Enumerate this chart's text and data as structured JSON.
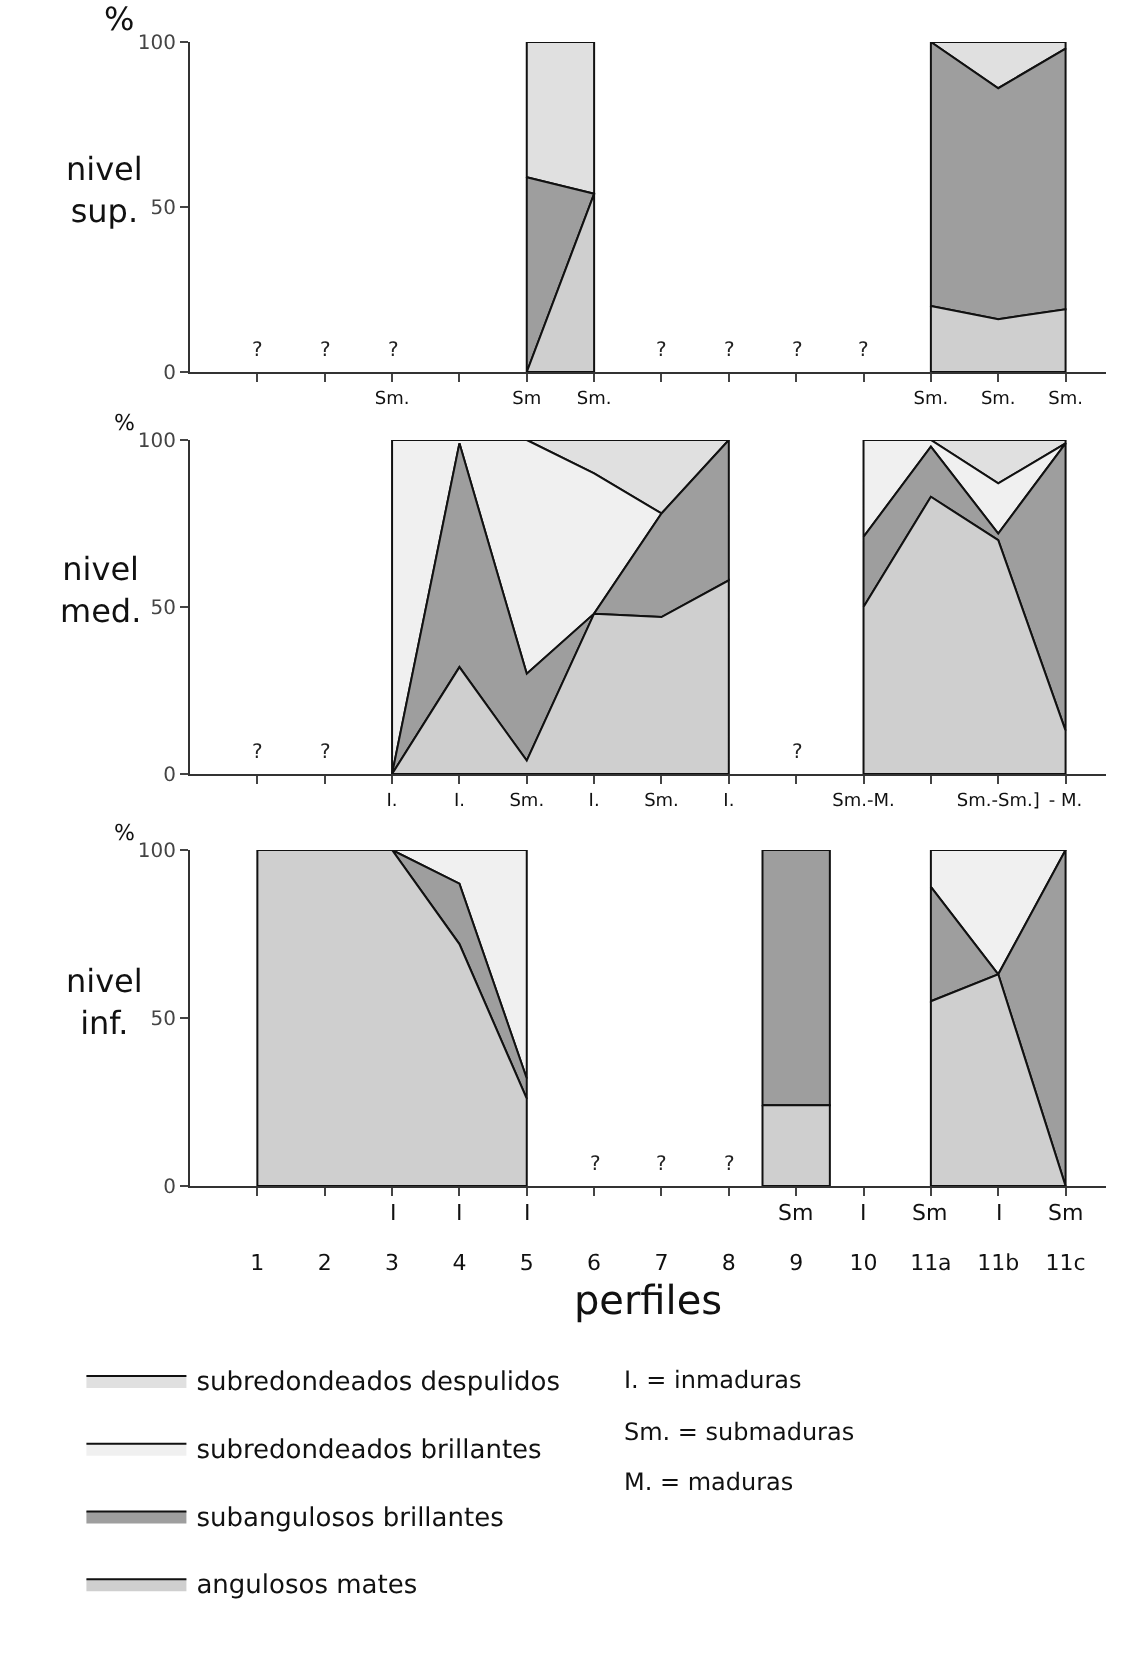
{
  "chart_data": [
    {
      "type": "area",
      "stacked": true,
      "ylabel": "nivel sup.",
      "legend": false,
      "categories": [
        null,
        null,
        "Sm.",
        null,
        "Sm",
        "Sm.",
        null,
        null,
        null,
        null,
        "Sm.",
        "Sm.",
        "Sm."
      ],
      "series": [
        {
          "color": "#cfcfcf",
          "values": [
            null,
            null,
            null,
            null,
            0,
            54,
            null,
            null,
            null,
            null,
            20,
            16,
            19
          ]
        },
        {
          "color": "#9e9e9e",
          "values": [
            null,
            null,
            null,
            null,
            59,
            0,
            null,
            null,
            null,
            null,
            80,
            70,
            79
          ]
        },
        {
          "color": "#e0e0e0",
          "values": [
            null,
            null,
            null,
            null,
            41,
            46,
            null,
            null,
            null,
            null,
            0,
            14,
            2
          ]
        }
      ],
      "ylim": [
        0,
        100
      ],
      "yticks": [
        0,
        50,
        100
      ],
      "annotations": [
        "%",
        "?",
        "?",
        "?",
        "?",
        "?",
        "?",
        "?"
      ]
    },
    {
      "type": "area",
      "stacked": true,
      "ylabel": "nivel med.",
      "legend": "bottom",
      "categories": [
        null,
        null,
        "I.",
        "I.",
        "Sm.",
        "I.",
        "Sm.",
        "I.",
        null,
        "Sm.-M.",
        null,
        "Sm.-Sm.]",
        "- M."
      ],
      "series": [
        {
          "name": "angulosos mates",
          "color": "#cfcfcf",
          "values": [
            null,
            null,
            0,
            32,
            4,
            48,
            47,
            58,
            null,
            50,
            83,
            70,
            13
          ]
        },
        {
          "name": "subangulosos brillantes",
          "color": "#9e9e9e",
          "values": [
            null,
            null,
            0,
            67,
            26,
            0,
            31,
            42,
            null,
            21,
            15,
            2,
            86
          ]
        },
        {
          "name": "subredondeados brillantes",
          "color": "#f0f0f0",
          "values": [
            null,
            null,
            100,
            1,
            70,
            42,
            0,
            null,
            null,
            29,
            2,
            15,
            0
          ]
        },
        {
          "name": "subredondeados despulidos",
          "color": "#e0e0e0",
          "values": [
            null,
            null,
            null,
            null,
            0,
            10,
            22,
            0,
            null,
            null,
            0,
            13,
            1
          ]
        }
      ],
      "ylim": [
        0,
        100
      ],
      "yticks": [
        0,
        50,
        100
      ],
      "annotations": [
        "%",
        "?",
        "?",
        "?"
      ]
    },
    {
      "type": "area",
      "stacked": true,
      "ylabel": "nivel inf.",
      "xlabel": "perfiles",
      "legend": false,
      "categories": [
        "1",
        "2",
        "3",
        "4",
        "5",
        "6",
        "7",
        "8",
        "9",
        "10",
        "11a",
        "11b",
        "11c"
      ],
      "series": [
        {
          "color": "#cfcfcf",
          "values": [
            100,
            100,
            100,
            72,
            26,
            null,
            null,
            null,
            24,
            null,
            55,
            63,
            0
          ]
        },
        {
          "color": "#9e9e9e",
          "values": [
            null,
            null,
            0,
            18,
            6,
            null,
            null,
            null,
            76,
            null,
            34,
            0,
            100
          ]
        },
        {
          "color": "#f0f0f0",
          "values": [
            null,
            null,
            0,
            10,
            68,
            null,
            null,
            null,
            null,
            null,
            11,
            37,
            0
          ]
        }
      ],
      "ylim": [
        0,
        100
      ],
      "yticks": [
        0,
        50,
        100
      ],
      "annotations": [
        "%",
        "I. = inmaduras",
        "Sm. = submaduras",
        "M. = maduras",
        "?",
        "?",
        "?",
        "I",
        "I",
        "I",
        "Sm",
        "I",
        "Sm",
        "I",
        "Sm"
      ]
    }
  ]
}
